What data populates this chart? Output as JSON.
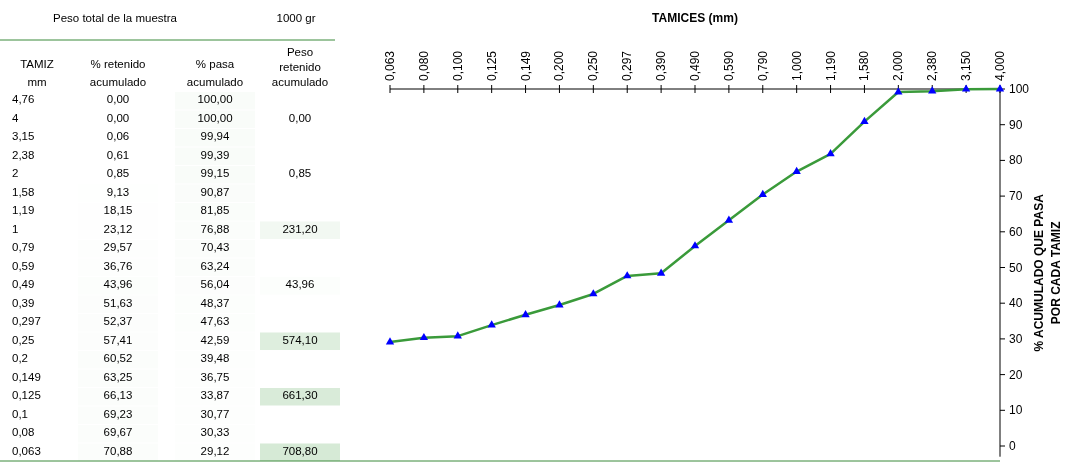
{
  "chart_data": [
    {
      "type": "heatmap",
      "title": "Peso total de la muestra",
      "subtitle": "1000 gr",
      "ylabel": "TAMIZ\nmm",
      "categories": [
        "% retenido\nacumulado",
        "% pasa\nacumulado",
        "Peso\nretenido\nacumulado"
      ],
      "y_categories": [
        "4,76",
        "4",
        "3,15",
        "2,38",
        "2",
        "1,58",
        "1,19",
        "1",
        "0,79",
        "0,59",
        "0,49",
        "0,39",
        "0,297",
        "0,25",
        "0,2",
        "0,149",
        "0,125",
        "0,1",
        "0,08",
        "0,063"
      ],
      "cells": [
        [
          0,
          100,
          null
        ],
        [
          0,
          100,
          0
        ],
        [
          0.06,
          99.94,
          null
        ],
        [
          0.61,
          99.39,
          null
        ],
        [
          0.85,
          99.15,
          0.85
        ],
        [
          9.13,
          90.87,
          null
        ],
        [
          18.15,
          81.85,
          null
        ],
        [
          23.12,
          76.88,
          231.2
        ],
        [
          29.57,
          70.43,
          null
        ],
        [
          36.76,
          63.24,
          null
        ],
        [
          43.96,
          56.04,
          43.96
        ],
        [
          51.63,
          48.37,
          null
        ],
        [
          52.37,
          47.63,
          null
        ],
        [
          57.41,
          42.59,
          574.1
        ],
        [
          60.52,
          39.48,
          null
        ],
        [
          63.25,
          36.75,
          null
        ],
        [
          66.13,
          33.87,
          661.3
        ],
        [
          69.23,
          30.77,
          null
        ],
        [
          69.67,
          30.33,
          null
        ],
        [
          70.88,
          29.12,
          708.8
        ]
      ],
      "cell_labels": [
        [
          "0,00",
          "100,00",
          null
        ],
        [
          "0,00",
          "100,00",
          "0,00"
        ],
        [
          "0,06",
          "99,94",
          null
        ],
        [
          "0,61",
          "99,39",
          null
        ],
        [
          "0,85",
          "99,15",
          "0,85"
        ],
        [
          "9,13",
          "90,87",
          null
        ],
        [
          "18,15",
          "81,85",
          null
        ],
        [
          "23,12",
          "76,88",
          "231,20"
        ],
        [
          "29,57",
          "70,43",
          null
        ],
        [
          "36,76",
          "63,24",
          null
        ],
        [
          "43,96",
          "56,04",
          "43,96"
        ],
        [
          "51,63",
          "48,37",
          null
        ],
        [
          "52,37",
          "47,63",
          null
        ],
        [
          "57,41",
          "42,59",
          "574,10"
        ],
        [
          "60,52",
          "39,48",
          null
        ],
        [
          "63,25",
          "36,75",
          null
        ],
        [
          "66,13",
          "33,87",
          "661,30"
        ],
        [
          "69,23",
          "30,77",
          null
        ],
        [
          "69,67",
          "30,33",
          null
        ],
        [
          "70,88",
          "29,12",
          "708,80"
        ]
      ]
    },
    {
      "type": "line",
      "title": "TAMICES  (mm)",
      "ylabel": "% ACUMULADO QUE PASA\nPOR CADA TAMIZ",
      "marker": "triangle",
      "grid": false,
      "categories": [
        "0,063",
        "0,080",
        "0,100",
        "0,125",
        "0,149",
        "0,200",
        "0,250",
        "0,297",
        "0,390",
        "0,490",
        "0,590",
        "0,790",
        "1,000",
        "1,190",
        "1,580",
        "2,000",
        "2,380",
        "3,150",
        "4,000"
      ],
      "series": [
        {
          "color": "#3a9a3a",
          "values": [
            29.12,
            30.33,
            30.77,
            33.87,
            36.75,
            39.48,
            42.59,
            47.63,
            48.37,
            56.04,
            63.24,
            70.43,
            76.88,
            81.85,
            90.87,
            99.15,
            99.39,
            99.94,
            100
          ]
        }
      ],
      "ylim": [
        -3,
        100
      ],
      "yticks": [
        0,
        10,
        20,
        30,
        40,
        50,
        60,
        70,
        80,
        90,
        100
      ]
    }
  ]
}
